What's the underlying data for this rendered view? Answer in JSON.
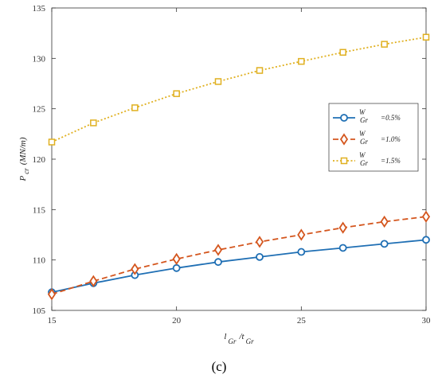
{
  "chart_data": {
    "type": "line",
    "x": [
      15,
      16.67,
      18.33,
      20,
      21.67,
      23.33,
      25,
      26.67,
      28.33,
      30
    ],
    "series": [
      {
        "name_main": "W",
        "name_sub": "Gr",
        "name_value": "=0.5%",
        "color": "#1f6fb4",
        "marker": "circle",
        "dash": "solid",
        "values": [
          106.8,
          107.7,
          108.5,
          109.2,
          109.8,
          110.3,
          110.8,
          111.2,
          111.6,
          112.0
        ]
      },
      {
        "name_main": "W",
        "name_sub": "Gr",
        "name_value": "=1.0%",
        "color": "#d4561e",
        "marker": "diamond",
        "dash": "dashed",
        "values": [
          106.6,
          107.9,
          109.1,
          110.1,
          111.0,
          111.8,
          112.5,
          113.2,
          113.8,
          114.3
        ]
      },
      {
        "name_main": "W",
        "name_sub": "Gr",
        "name_value": "=1.5%",
        "color": "#e0b020",
        "marker": "square",
        "dash": "dotted",
        "values": [
          121.7,
          123.6,
          125.1,
          126.5,
          127.7,
          128.8,
          129.7,
          130.6,
          131.4,
          132.1
        ]
      }
    ],
    "xlim": [
      15,
      30
    ],
    "ylim": [
      105,
      135
    ],
    "xticks": [
      15,
      20,
      25,
      30
    ],
    "yticks": [
      105,
      110,
      115,
      120,
      125,
      130,
      135
    ],
    "xlabel": {
      "part1": "l",
      "sub1": "Gr",
      "part2": "/t",
      "sub2": "Gr"
    },
    "ylabel": {
      "main": "P",
      "sub": "cr",
      "unit": "(MN/m)"
    },
    "legend": "right",
    "grid": false,
    "panel_label": "(c)"
  }
}
